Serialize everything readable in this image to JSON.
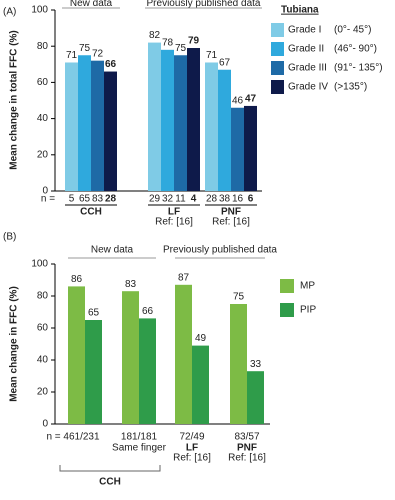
{
  "chart_data": [
    {
      "type": "bar",
      "panel_label": "(A)",
      "ylabel": "Mean change in total FFC (%)",
      "categories": [
        "CCH",
        "LF",
        "PNF"
      ],
      "category_notes": [
        null,
        "Ref: [16]",
        "Ref: [16]"
      ],
      "annotations": [
        "New data",
        "Previously published data"
      ],
      "n_label": "n =",
      "legend_title": "Tubiana",
      "series": [
        {
          "name": "Grade I",
          "range": "(0°- 45°)",
          "color": "#7fcbe6",
          "values": [
            71,
            82,
            71
          ],
          "n": [
            5,
            29,
            28
          ]
        },
        {
          "name": "Grade II",
          "range": "(46°- 90°)",
          "color": "#2fa9dd",
          "values": [
            75,
            78,
            67
          ],
          "n": [
            65,
            32,
            38
          ]
        },
        {
          "name": "Grade III",
          "range": "(91°- 135°)",
          "color": "#1e6aa6",
          "values": [
            72,
            75,
            46
          ],
          "n": [
            83,
            11,
            16
          ]
        },
        {
          "name": "Grade IV",
          "range": "(>135°)",
          "color": "#0e1a4a",
          "values": [
            66,
            79,
            47
          ],
          "n": [
            28,
            4,
            6
          ]
        }
      ],
      "ylim": [
        0,
        100
      ],
      "yticks": [
        0,
        20,
        40,
        60,
        80,
        100
      ],
      "grid": false
    },
    {
      "type": "bar",
      "panel_label": "(B)",
      "ylabel": "Mean change in FFC (%)",
      "categories": [
        "n = 461/231",
        "181/181",
        "72/49",
        "83/57"
      ],
      "category_sublabels": [
        null,
        "Same finger",
        "LF",
        "PNF"
      ],
      "category_notes": [
        null,
        null,
        "Ref: [16]",
        "Ref: [16]"
      ],
      "bracket_label": "CCH",
      "annotations": [
        "New data",
        "Previously published data"
      ],
      "series": [
        {
          "name": "MP",
          "color": "#7dbb45",
          "values": [
            86,
            83,
            87,
            75
          ]
        },
        {
          "name": "PIP",
          "color": "#2f9c4a",
          "values": [
            65,
            66,
            49,
            33
          ]
        }
      ],
      "ylim": [
        0,
        100
      ],
      "yticks": [
        0,
        20,
        40,
        60,
        80,
        100
      ],
      "grid": false
    }
  ]
}
